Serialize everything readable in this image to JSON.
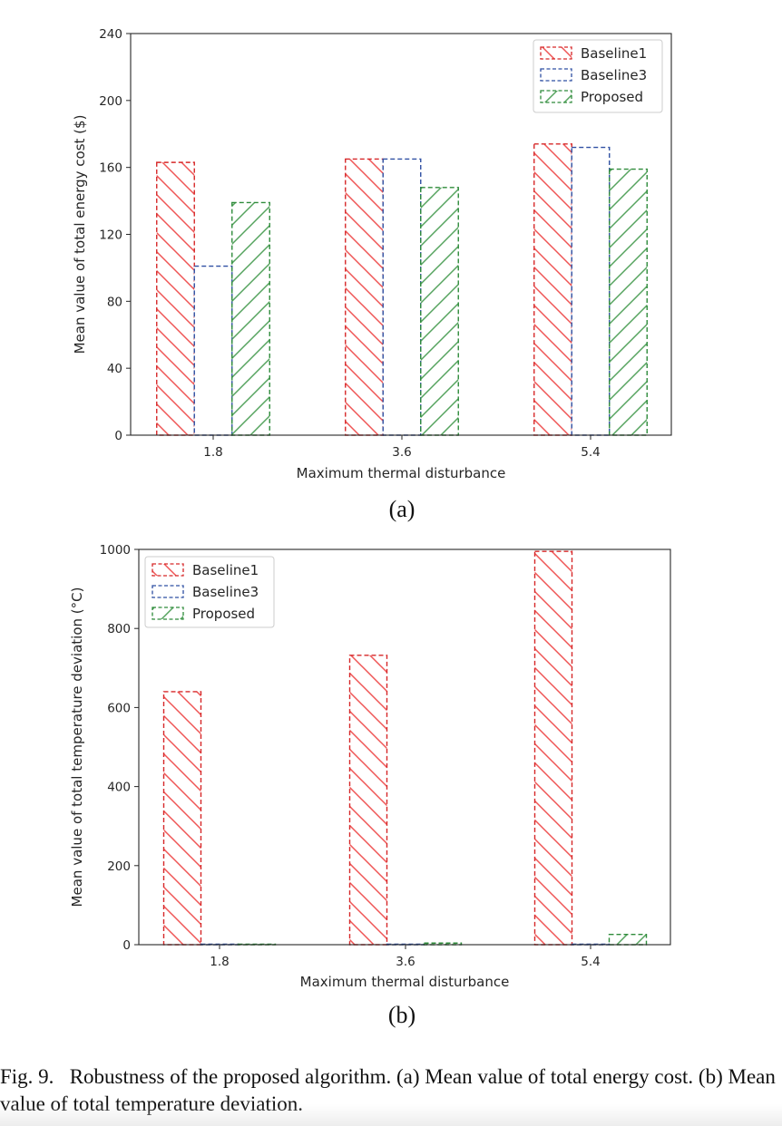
{
  "colors": {
    "baseline1": "#d62728",
    "baseline1_hatch": "#ef5555",
    "baseline3": "#2e4fa2",
    "proposed": "#2e8b3a",
    "proposed_hatch": "#55a35e",
    "axis": "#262626"
  },
  "chart_data": [
    {
      "id": "a",
      "type": "bar",
      "panel_label": "(a)",
      "xlabel": "Maximum thermal disturbance",
      "ylabel": "Mean value of total energy cost ($)",
      "categories": [
        "1.8",
        "3.6",
        "5.4"
      ],
      "yticks": [
        0,
        40,
        80,
        120,
        160,
        200,
        240
      ],
      "ylim": [
        0,
        240
      ],
      "legend_position": "upper right",
      "series": [
        {
          "name": "Baseline1",
          "values": [
            163,
            165,
            174
          ],
          "hatch": "\\"
        },
        {
          "name": "Baseline3",
          "values": [
            101,
            165,
            172
          ],
          "hatch": "none"
        },
        {
          "name": "Proposed",
          "values": [
            139,
            148,
            159
          ],
          "hatch": "/"
        }
      ]
    },
    {
      "id": "b",
      "type": "bar",
      "panel_label": "(b)",
      "xlabel": "Maximum thermal disturbance",
      "ylabel": "Mean value of total temperature deviation (°C)",
      "categories": [
        "1.8",
        "3.6",
        "5.4"
      ],
      "yticks": [
        0,
        200,
        400,
        600,
        800,
        1000
      ],
      "ylim": [
        0,
        1000
      ],
      "legend_position": "upper left",
      "series": [
        {
          "name": "Baseline1",
          "values": [
            640,
            732,
            995
          ],
          "hatch": "\\"
        },
        {
          "name": "Baseline3",
          "values": [
            0,
            0,
            0
          ],
          "hatch": "none"
        },
        {
          "name": "Proposed",
          "values": [
            1,
            4,
            26
          ],
          "hatch": "/"
        }
      ]
    }
  ],
  "caption": {
    "label": "Fig. 9.",
    "text": "Robustness of the proposed algorithm. (a) Mean value of total energy cost. (b) Mean value of total temperature deviation."
  }
}
